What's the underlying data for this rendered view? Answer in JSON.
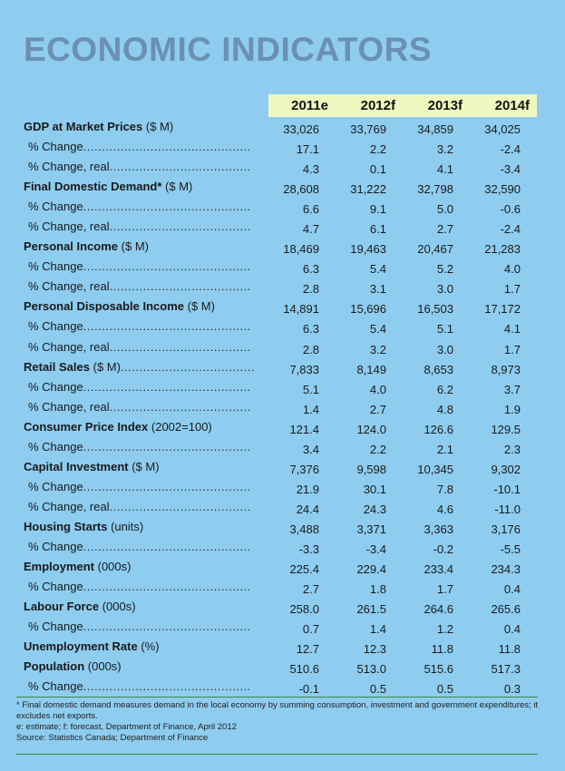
{
  "title": "ECONOMIC INDICATORS",
  "columns": [
    "2011e",
    "2012f",
    "2013f",
    "2014f"
  ],
  "rows": [
    {
      "label": "GDP at Market Prices",
      "unit": " ($ M)",
      "bold": true,
      "dots": false,
      "values": [
        "33,026",
        "33,769",
        "34,859",
        "34,025"
      ]
    },
    {
      "label": "% Change",
      "unit": "",
      "bold": false,
      "dots": true,
      "values": [
        "17.1",
        "2.2",
        "3.2",
        "-2.4"
      ]
    },
    {
      "label": "% Change, real",
      "unit": "",
      "bold": false,
      "dots": true,
      "values": [
        "4.3",
        "0.1",
        "4.1",
        "-3.4"
      ]
    },
    {
      "label": "Final Domestic Demand*",
      "unit": " ($ M)",
      "bold": true,
      "dots": false,
      "values": [
        "28,608",
        "31,222",
        "32,798",
        "32,590"
      ]
    },
    {
      "label": "% Change",
      "unit": "",
      "bold": false,
      "dots": true,
      "values": [
        "6.6",
        "9.1",
        "5.0",
        "-0.6"
      ]
    },
    {
      "label": "% Change, real",
      "unit": "",
      "bold": false,
      "dots": true,
      "values": [
        "4.7",
        "6.1",
        "2.7",
        "-2.4"
      ]
    },
    {
      "label": "Personal Income",
      "unit": " ($ M)",
      "bold": true,
      "dots": false,
      "values": [
        "18,469",
        "19,463",
        "20,467",
        "21,283"
      ]
    },
    {
      "label": "% Change",
      "unit": "",
      "bold": false,
      "dots": true,
      "values": [
        "6.3",
        "5.4",
        "5.2",
        "4.0"
      ]
    },
    {
      "label": "% Change, real",
      "unit": "",
      "bold": false,
      "dots": true,
      "values": [
        "2.8",
        "3.1",
        "3.0",
        "1.7"
      ]
    },
    {
      "label": "Personal Disposable Income",
      "unit": " ($ M)",
      "bold": true,
      "dots": false,
      "values": [
        "14,891",
        "15,696",
        "16,503",
        "17,172"
      ]
    },
    {
      "label": "% Change",
      "unit": "",
      "bold": false,
      "dots": true,
      "values": [
        "6.3",
        "5.4",
        "5.1",
        "4.1"
      ]
    },
    {
      "label": "% Change, real",
      "unit": "",
      "bold": false,
      "dots": true,
      "values": [
        "2.8",
        "3.2",
        "3.0",
        "1.7"
      ]
    },
    {
      "label": "Retail Sales",
      "unit": " ($ M)",
      "bold": true,
      "dots": true,
      "values": [
        "7,833",
        "8,149",
        "8,653",
        "8,973"
      ]
    },
    {
      "label": "% Change",
      "unit": "",
      "bold": false,
      "dots": true,
      "values": [
        "5.1",
        "4.0",
        "6.2",
        "3.7"
      ]
    },
    {
      "label": "% Change, real",
      "unit": "",
      "bold": false,
      "dots": true,
      "values": [
        "1.4",
        "2.7",
        "4.8",
        "1.9"
      ]
    },
    {
      "label": "Consumer Price Index",
      "unit": " (2002=100)",
      "bold": true,
      "dots": false,
      "values": [
        "121.4",
        "124.0",
        "126.6",
        "129.5"
      ]
    },
    {
      "label": "% Change",
      "unit": "",
      "bold": false,
      "dots": true,
      "values": [
        "3.4",
        "2.2",
        "2.1",
        "2.3"
      ]
    },
    {
      "label": "Capital Investment",
      "unit": " ($ M)",
      "bold": true,
      "dots": false,
      "values": [
        "7,376",
        "9,598",
        "10,345",
        "9,302"
      ]
    },
    {
      "label": "% Change",
      "unit": "",
      "bold": false,
      "dots": true,
      "values": [
        "21.9",
        "30.1",
        "7.8",
        "-10.1"
      ]
    },
    {
      "label": "% Change, real",
      "unit": "",
      "bold": false,
      "dots": true,
      "values": [
        "24.4",
        "24.3",
        "4.6",
        "-11.0"
      ]
    },
    {
      "label": "Housing Starts",
      "unit": " (units)",
      "bold": true,
      "dots": false,
      "values": [
        "3,488",
        "3,371",
        "3,363",
        "3,176"
      ]
    },
    {
      "label": "% Change",
      "unit": "",
      "bold": false,
      "dots": true,
      "values": [
        "-3.3",
        "-3.4",
        "-0.2",
        "-5.5"
      ]
    },
    {
      "label": "Employment",
      "unit": " (000s)",
      "bold": true,
      "dots": false,
      "values": [
        "225.4",
        "229.4",
        "233.4",
        "234.3"
      ]
    },
    {
      "label": "% Change",
      "unit": "",
      "bold": false,
      "dots": true,
      "values": [
        "2.7",
        "1.8",
        "1.7",
        "0.4"
      ]
    },
    {
      "label": "Labour Force",
      "unit": " (000s)",
      "bold": true,
      "dots": false,
      "values": [
        "258.0",
        "261.5",
        "264.6",
        "265.6"
      ]
    },
    {
      "label": "% Change",
      "unit": "",
      "bold": false,
      "dots": true,
      "values": [
        "0.7",
        "1.4",
        "1.2",
        "0.4"
      ]
    },
    {
      "label": "Unemployment Rate",
      "unit": " (%)",
      "bold": true,
      "dots": false,
      "values": [
        "12.7",
        "12.3",
        "11.8",
        "11.8"
      ]
    },
    {
      "label": "Population",
      "unit": " (000s)",
      "bold": true,
      "dots": false,
      "values": [
        "510.6",
        "513.0",
        "515.6",
        "517.3"
      ]
    },
    {
      "label": "% Change",
      "unit": "",
      "bold": false,
      "dots": true,
      "values": [
        "-0.1",
        "0.5",
        "0.5",
        "0.3"
      ]
    }
  ],
  "notes": [
    "* Final domestic demand measures demand in the local economy by summing consumption, investment and government expenditures; it excludes net exports.",
    "e: estimate; f: forecast, Department of Finance, April 2012",
    "Source: Statistics Canada; Department of Finance"
  ],
  "colors": {
    "background": "#8ecdf0",
    "title": "#6a90b3",
    "header_band": "#f0f7bf",
    "rule": "#3a8a3a"
  }
}
